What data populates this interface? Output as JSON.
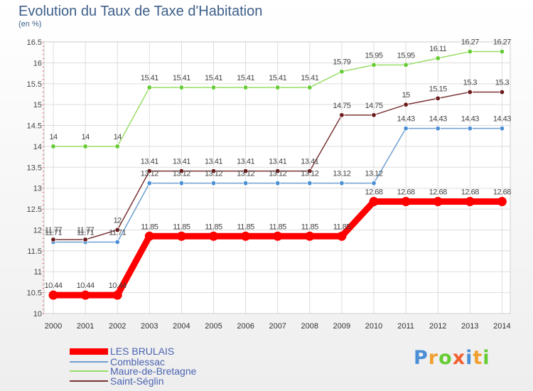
{
  "title": "Evolution du Taux de Taxe d'Habitation",
  "subtitle": "(en %)",
  "chart_data": {
    "type": "line",
    "x": [
      "2000",
      "2001",
      "2002",
      "2003",
      "2004",
      "2005",
      "2006",
      "2007",
      "2008",
      "2009",
      "2010",
      "2011",
      "2012",
      "2013",
      "2014"
    ],
    "ylim": [
      10,
      16.5
    ],
    "yticks": [
      "10",
      "10.5",
      "11",
      "11.5",
      "12",
      "12.5",
      "13",
      "13.5",
      "14",
      "14.5",
      "15",
      "15.5",
      "16",
      "16.5"
    ],
    "grid": true,
    "legend_position": "bottom-left",
    "series": [
      {
        "name": "LES BRULAIS",
        "color": "#ff0000",
        "point_color": "#ff0000",
        "values": [
          10.44,
          10.44,
          10.44,
          11.85,
          11.85,
          11.85,
          11.85,
          11.85,
          11.85,
          11.85,
          12.68,
          12.68,
          12.68,
          12.68,
          12.68
        ],
        "labels": [
          "10.44",
          "10.44",
          "10.44",
          "11.85",
          "11.85",
          "11.85",
          "11.85",
          "11.85",
          "11.85",
          "11.85",
          "12.68",
          "12.68",
          "12.68",
          "12.68",
          "12.68"
        ]
      },
      {
        "name": "Comblessac",
        "color": "#6f9fd0",
        "point_color": "#4a8fd6",
        "values": [
          11.71,
          11.71,
          11.71,
          13.12,
          13.12,
          13.12,
          13.12,
          13.12,
          13.12,
          13.12,
          13.12,
          14.43,
          14.43,
          14.43,
          14.43
        ],
        "labels": [
          "11.71",
          "11.71",
          "11.71",
          "13.12",
          "13.12",
          "13.12",
          "13.12",
          "13.12",
          "13.12",
          "13.12",
          "13.12",
          "14.43",
          "14.43",
          "14.43",
          "14.43"
        ]
      },
      {
        "name": "Maure-de-Bretagne",
        "color": "#99dd66",
        "point_color": "#66cc33",
        "values": [
          14,
          14,
          14,
          15.41,
          15.41,
          15.41,
          15.41,
          15.41,
          15.41,
          15.79,
          15.95,
          15.95,
          16.11,
          16.27,
          16.27
        ],
        "labels": [
          "14",
          "14",
          "14",
          "15.41",
          "15.41",
          "15.41",
          "15.41",
          "15.41",
          "15.41",
          "15.79",
          "15.95",
          "15.95",
          "16.11",
          "16.27",
          "16.27"
        ]
      },
      {
        "name": "Saint-Séglin",
        "color": "#7a3535",
        "point_color": "#6b1a1a",
        "values": [
          11.77,
          11.77,
          12,
          13.41,
          13.41,
          13.41,
          13.41,
          13.41,
          13.41,
          14.75,
          14.75,
          15,
          15.15,
          15.3,
          15.3
        ],
        "labels": [
          "11.77",
          "11.77",
          "12",
          "13.41",
          "13.41",
          "13.41",
          "13.41",
          "13.41",
          "13.41",
          "14.75",
          "14.75",
          "15",
          "15.15",
          "15.3",
          "15.3"
        ]
      }
    ]
  },
  "logo": {
    "text": "Proxiti",
    "colors": [
      "#4a8fd6",
      "#f0a030",
      "#66cc33",
      "#f06030",
      "#4a8fd6",
      "#f0a030",
      "#66cc33"
    ]
  }
}
